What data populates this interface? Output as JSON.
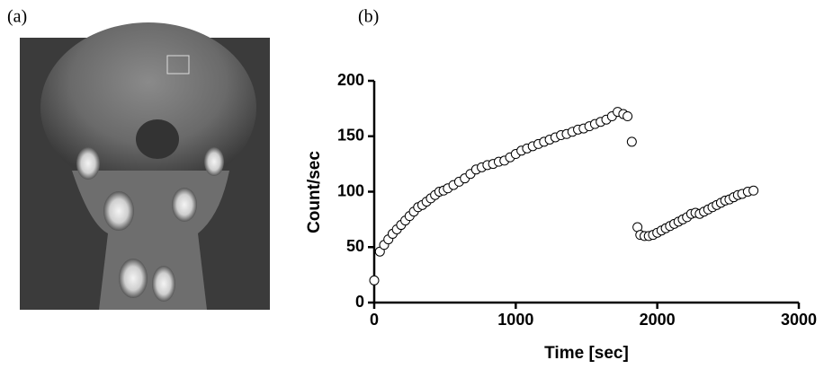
{
  "panel_labels": [
    "(a)",
    "(b)"
  ],
  "chart_data": {
    "type": "scatter",
    "x_label": "Time [sec]",
    "y_label": "Count/sec",
    "x": [
      0,
      40,
      70,
      100,
      130,
      160,
      190,
      220,
      250,
      280,
      310,
      340,
      370,
      400,
      430,
      460,
      490,
      520,
      560,
      600,
      640,
      680,
      720,
      760,
      800,
      840,
      880,
      920,
      960,
      1000,
      1040,
      1080,
      1120,
      1160,
      1200,
      1240,
      1280,
      1320,
      1360,
      1400,
      1440,
      1480,
      1520,
      1560,
      1600,
      1640,
      1680,
      1720,
      1760,
      1790,
      1820,
      1860,
      1880,
      1910,
      1940,
      1970,
      2000,
      2030,
      2060,
      2090,
      2120,
      2150,
      2180,
      2210,
      2240,
      2270,
      2300,
      2330,
      2360,
      2390,
      2420,
      2450,
      2480,
      2510,
      2540,
      2570,
      2600,
      2640,
      2680
    ],
    "values": [
      20,
      46,
      52,
      57,
      62,
      66,
      70,
      74,
      78,
      82,
      86,
      88,
      91,
      94,
      97,
      100,
      101,
      103,
      106,
      109,
      112,
      116,
      120,
      122,
      124,
      125,
      127,
      128,
      131,
      134,
      137,
      139,
      141,
      143,
      145,
      147,
      149,
      151,
      152,
      154,
      156,
      157,
      159,
      161,
      163,
      165,
      168,
      172,
      170,
      168,
      145,
      68,
      61,
      60,
      60,
      61,
      63,
      65,
      67,
      69,
      71,
      73,
      75,
      77,
      80,
      81,
      80,
      82,
      84,
      86,
      88,
      90,
      92,
      93,
      95,
      97,
      98,
      100,
      101
    ],
    "color": "#000000",
    "xlim": [
      0,
      3000
    ],
    "xticks": [
      0,
      1000,
      2000,
      3000
    ],
    "ylim": [
      0,
      200
    ],
    "yticks": [
      0,
      50,
      100,
      150,
      200
    ]
  }
}
